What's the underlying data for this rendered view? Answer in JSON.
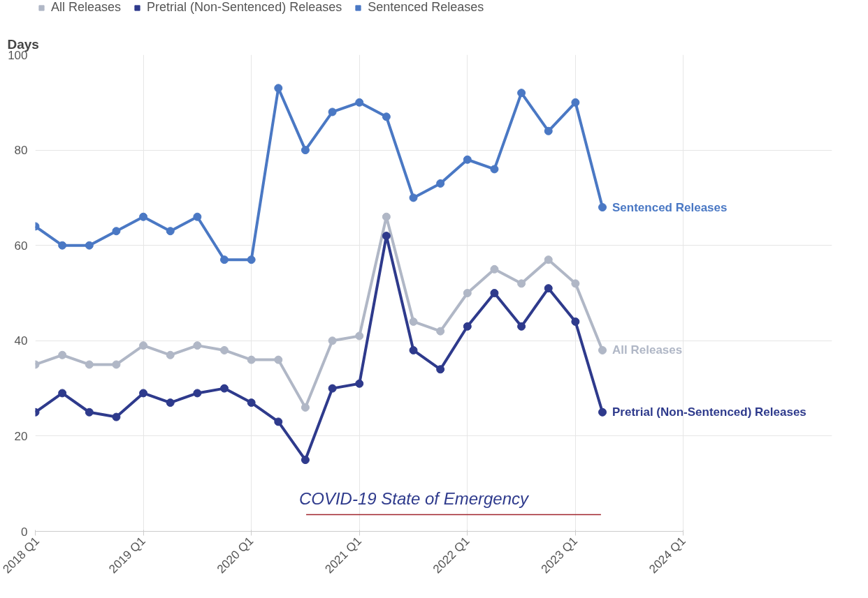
{
  "chart_data": {
    "type": "line",
    "ylabel": "Days",
    "categories": [
      "2018 Q1",
      null,
      null,
      null,
      "2019 Q1",
      null,
      null,
      null,
      "2020 Q1",
      null,
      null,
      null,
      "2021 Q1",
      null,
      null,
      null,
      "2022 Q1",
      null,
      null,
      null,
      "2023 Q1",
      null,
      null,
      null,
      "2024 Q1"
    ],
    "series": [
      {
        "name": "All Releases",
        "color": "#b0b7c6",
        "values": [
          35,
          37,
          35,
          35,
          39,
          37,
          39,
          38,
          36,
          36,
          26,
          40,
          41,
          66,
          44,
          42,
          50,
          55,
          52,
          57,
          52,
          38,
          null,
          null,
          null
        ]
      },
      {
        "name": "Pretrial (Non-Sentenced) Releases",
        "color": "#2e3a8c",
        "values": [
          25,
          29,
          25,
          24,
          29,
          27,
          29,
          30,
          27,
          23,
          15,
          30,
          31,
          62,
          38,
          34,
          43,
          50,
          43,
          51,
          44,
          25,
          null,
          null,
          null
        ]
      },
      {
        "name": "Sentenced Releases",
        "color": "#4a78c4",
        "values": [
          64,
          60,
          60,
          63,
          66,
          63,
          66,
          57,
          57,
          93,
          80,
          88,
          90,
          87,
          70,
          73,
          78,
          76,
          92,
          84,
          90,
          68,
          null,
          null,
          null
        ]
      }
    ],
    "ylim": [
      0,
      100
    ],
    "yticks": [
      0,
      20,
      40,
      60,
      80,
      100
    ],
    "annotations": [
      "COVID-19 State of Emergency"
    ],
    "grid": true,
    "legend": "top left",
    "marker": "circle",
    "line_style": "solid"
  }
}
